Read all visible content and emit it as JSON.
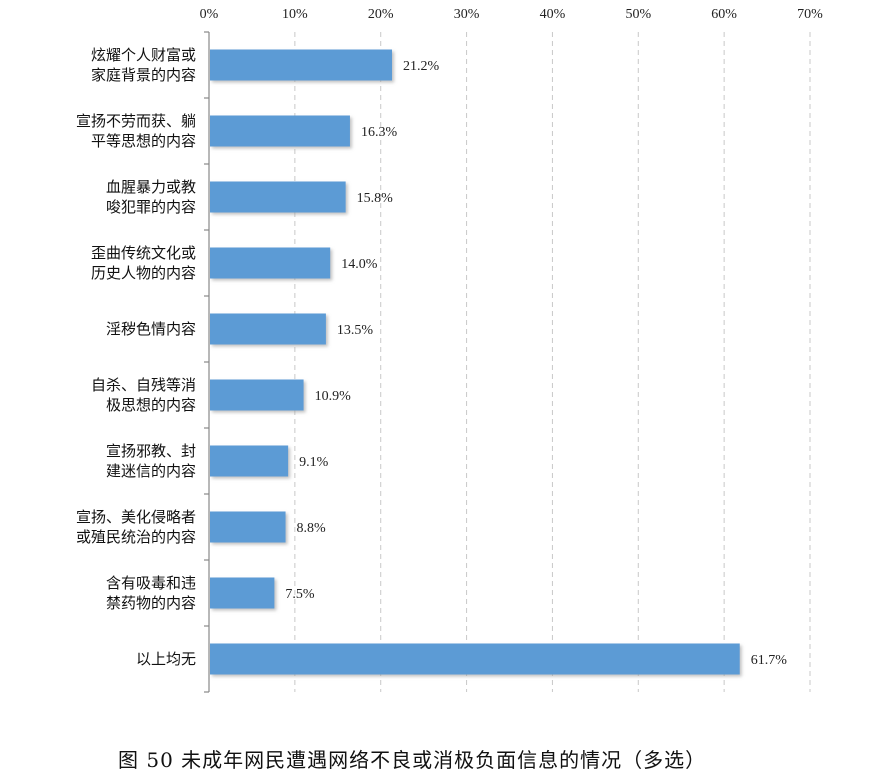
{
  "chart_data": {
    "type": "bar",
    "orientation": "horizontal",
    "title": "图 50 未成年网民遭遇网络不良或消极负面信息的情况（多选）",
    "categories": [
      [
        "炫耀个人财富或",
        "家庭背景的内容"
      ],
      [
        "宣扬不劳而获、躺",
        "平等思想的内容"
      ],
      [
        "血腥暴力或教",
        "唆犯罪的内容"
      ],
      [
        "歪曲传统文化或",
        "历史人物的内容"
      ],
      [
        "淫秽色情内容"
      ],
      [
        "自杀、自残等消",
        "极思想的内容"
      ],
      [
        "宣扬邪教、封",
        "建迷信的内容"
      ],
      [
        "宣扬、美化侵略者",
        "或殖民统治的内容"
      ],
      [
        "含有吸毒和违",
        "禁药物的内容"
      ],
      [
        "以上均无"
      ]
    ],
    "values": [
      21.2,
      16.3,
      15.8,
      14.0,
      13.5,
      10.9,
      9.1,
      8.8,
      7.5,
      61.7
    ],
    "data_labels": [
      "21.2%",
      "16.3%",
      "15.8%",
      "14.0%",
      "13.5%",
      "10.9%",
      "9.1%",
      "8.8%",
      "7.5%",
      "61.7%"
    ],
    "xlim": [
      0,
      70
    ],
    "x_ticks": [
      "0%",
      "10%",
      "20%",
      "30%",
      "40%",
      "50%",
      "60%",
      "70%"
    ],
    "x_axis_position": "top",
    "grid": "vertical dashed",
    "bar_color": "#5b9bd5"
  }
}
